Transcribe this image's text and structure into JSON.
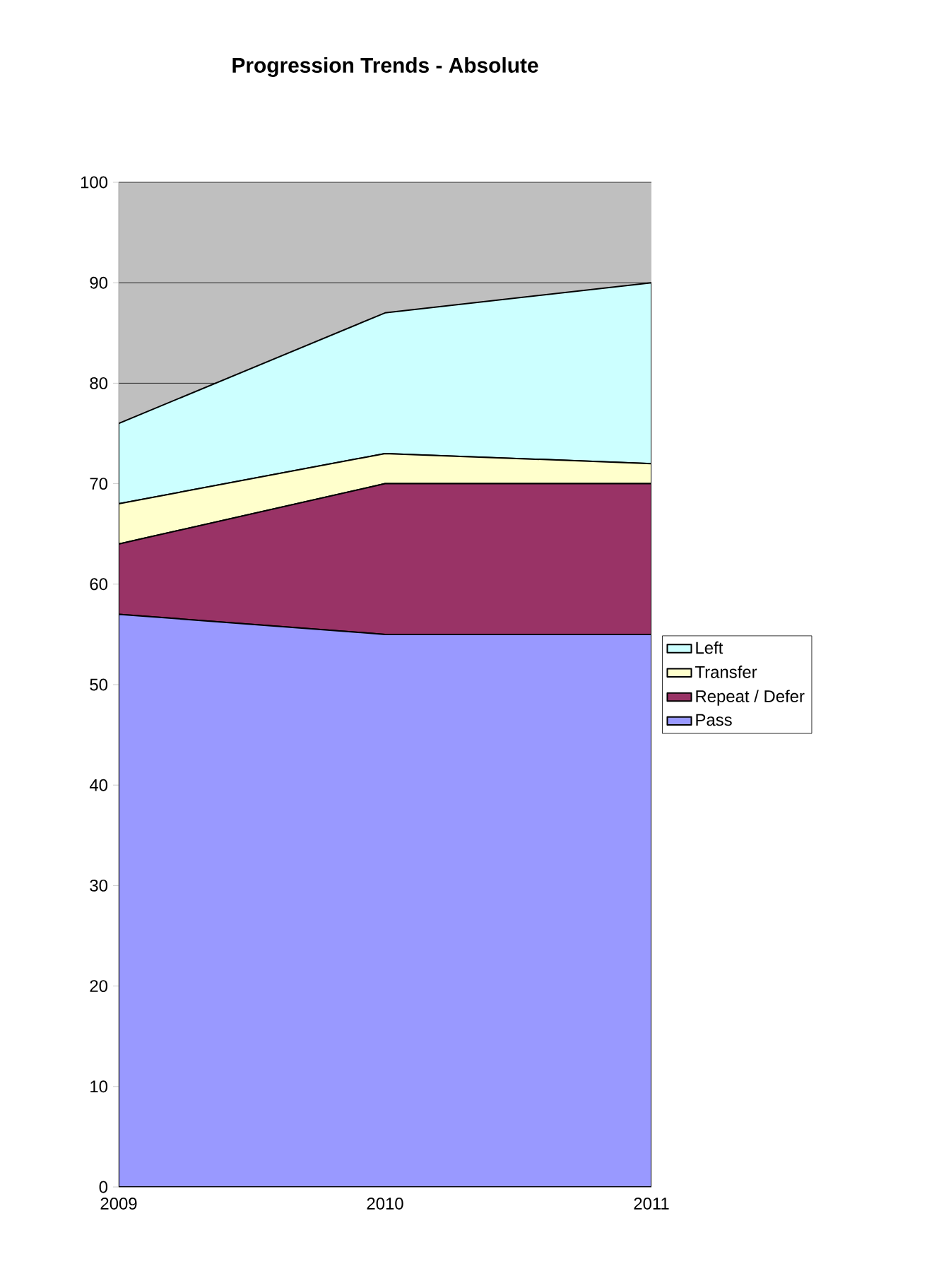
{
  "chart_data": {
    "type": "area",
    "stacked": true,
    "title": "Progression Trends - Absolute",
    "categories": [
      "2009",
      "2010",
      "2011"
    ],
    "series": [
      {
        "name": "Pass",
        "color": "#9999ff",
        "values": [
          57,
          55,
          55
        ]
      },
      {
        "name": "Repeat / Defer",
        "color": "#993366",
        "values": [
          7,
          15,
          15
        ]
      },
      {
        "name": "Transfer",
        "color": "#ffffcc",
        "values": [
          4,
          3,
          2
        ]
      },
      {
        "name": "Left",
        "color": "#ccffff",
        "values": [
          8,
          14,
          18
        ]
      }
    ],
    "ylim": [
      0,
      100
    ],
    "yticks": [
      0,
      10,
      20,
      30,
      40,
      50,
      60,
      70,
      80,
      90,
      100
    ],
    "grid": "y",
    "legend": "right"
  }
}
